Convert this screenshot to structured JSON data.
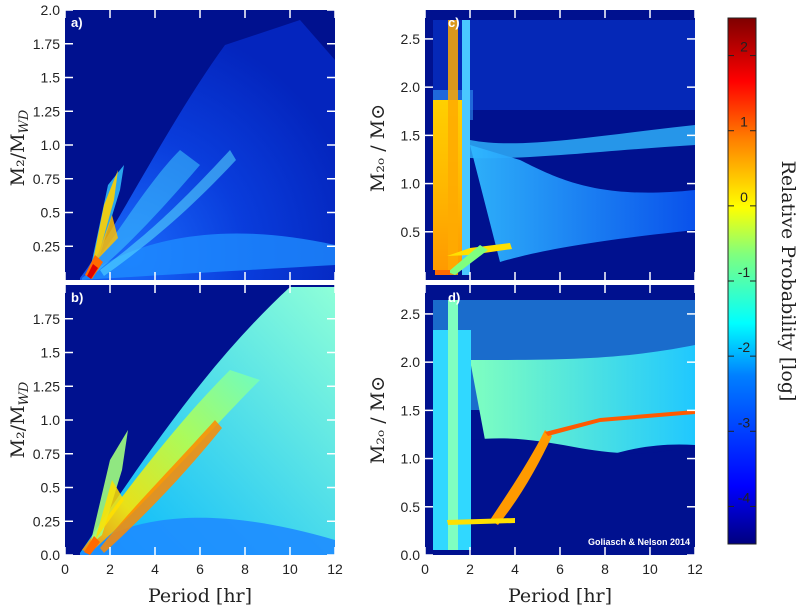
{
  "chart_data": [
    {
      "id": "a",
      "type": "heatmap",
      "panel_label": "a)",
      "ylabel": "M₂/M_WD",
      "xlim": [
        0,
        12
      ],
      "ylim": [
        0.0,
        2.0
      ],
      "yticks": [
        "0.25",
        "0.5",
        "0.75",
        "1.0",
        "1.25",
        "1.5",
        "1.75",
        "2.0"
      ],
      "ytick_values": [
        0.25,
        0.5,
        0.75,
        1.0,
        1.25,
        1.5,
        1.75,
        2.0
      ],
      "xticks_shown": false
    },
    {
      "id": "b",
      "type": "heatmap",
      "panel_label": "b)",
      "ylabel": "M₂/M_WD",
      "xlabel": "Period [hr]",
      "xlim": [
        0,
        12
      ],
      "ylim": [
        0.0,
        2.0
      ],
      "xticks": [
        "0",
        "2",
        "4",
        "6",
        "8",
        "10",
        "12"
      ],
      "xtick_values": [
        0,
        2,
        4,
        6,
        8,
        10,
        12
      ],
      "yticks": [
        "0.0",
        "0.25",
        "0.5",
        "0.75",
        "1.0",
        "1.25",
        "1.5",
        "1.75"
      ],
      "ytick_values": [
        0.0,
        0.25,
        0.5,
        0.75,
        1.0,
        1.25,
        1.5,
        1.75
      ]
    },
    {
      "id": "c",
      "type": "heatmap",
      "panel_label": "c)",
      "ylabel": "M₂ₒ / M⊙",
      "xlim": [
        0,
        12
      ],
      "ylim": [
        0.0,
        2.8
      ],
      "yticks": [
        "0.5",
        "1.0",
        "1.5",
        "2.0",
        "2.5"
      ],
      "ytick_values": [
        0.5,
        1.0,
        1.5,
        2.0,
        2.5
      ],
      "xticks_shown": false
    },
    {
      "id": "d",
      "type": "heatmap",
      "panel_label": "d)",
      "ylabel": "M₂ₒ / M⊙",
      "xlabel": "Period [hr]",
      "xlim": [
        0,
        12
      ],
      "ylim": [
        0.0,
        2.8
      ],
      "xticks": [
        "0",
        "2",
        "4",
        "6",
        "8",
        "10",
        "12"
      ],
      "xtick_values": [
        0,
        2,
        4,
        6,
        8,
        10,
        12
      ],
      "yticks": [
        "0.0",
        "0.5",
        "1.0",
        "1.5",
        "2.0",
        "2.5"
      ],
      "ytick_values": [
        0.0,
        0.5,
        1.0,
        1.5,
        2.0,
        2.5
      ],
      "annotation": "Goliasch & Nelson 2014"
    }
  ],
  "colorbar": {
    "label": "Relative Probability [log]",
    "range": [
      -4.5,
      2.5
    ],
    "ticks": [
      "2",
      "1",
      "0",
      "-1",
      "-2",
      "-3",
      "-4"
    ],
    "tick_values": [
      2,
      1,
      0,
      -1,
      -2,
      -3,
      -4
    ],
    "colormap": [
      "#00007f",
      "#0000ff",
      "#007fff",
      "#00ffff",
      "#7fff7f",
      "#ffff00",
      "#ff7f00",
      "#ff0000",
      "#7f0000"
    ]
  },
  "colors": {
    "background": "#00118f",
    "tick_color": "#ffffff"
  }
}
